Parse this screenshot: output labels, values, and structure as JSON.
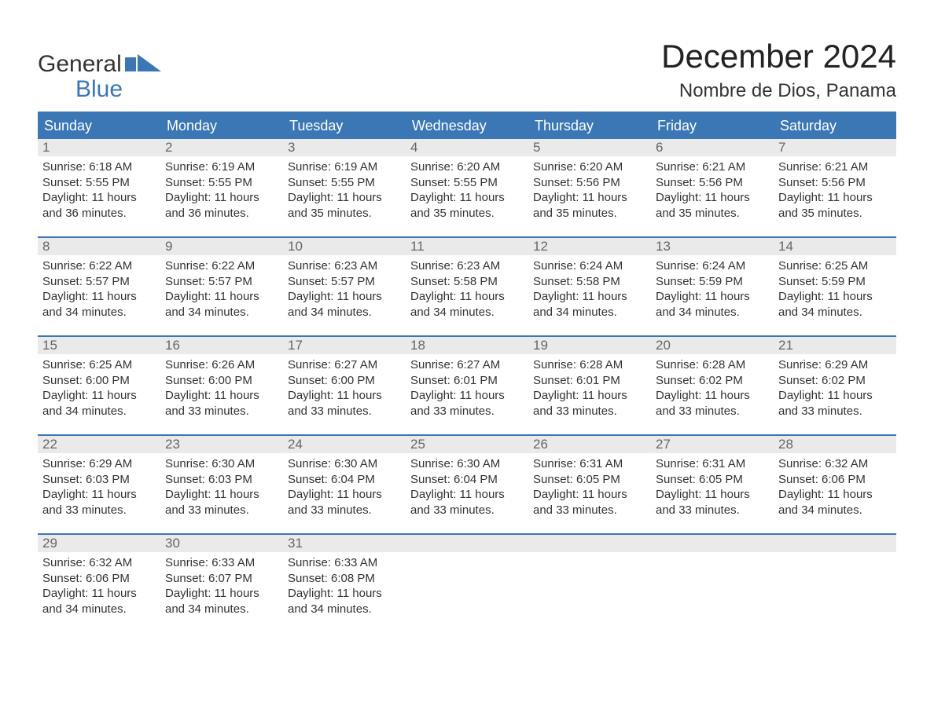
{
  "logo": {
    "line1": "General",
    "line2": "Blue"
  },
  "title": "December 2024",
  "subtitle": "Nombre de Dios, Panama",
  "colors": {
    "brand_blue": "#3b76b5",
    "header_gray": "#eaeaea",
    "text_dark": "#333333",
    "text_muted": "#666666",
    "bg": "#ffffff"
  },
  "daysOfWeek": [
    "Sunday",
    "Monday",
    "Tuesday",
    "Wednesday",
    "Thursday",
    "Friday",
    "Saturday"
  ],
  "weeks": [
    [
      {
        "n": "1",
        "sr": "Sunrise: 6:18 AM",
        "ss": "Sunset: 5:55 PM",
        "d1": "Daylight: 11 hours",
        "d2": "and 36 minutes."
      },
      {
        "n": "2",
        "sr": "Sunrise: 6:19 AM",
        "ss": "Sunset: 5:55 PM",
        "d1": "Daylight: 11 hours",
        "d2": "and 36 minutes."
      },
      {
        "n": "3",
        "sr": "Sunrise: 6:19 AM",
        "ss": "Sunset: 5:55 PM",
        "d1": "Daylight: 11 hours",
        "d2": "and 35 minutes."
      },
      {
        "n": "4",
        "sr": "Sunrise: 6:20 AM",
        "ss": "Sunset: 5:55 PM",
        "d1": "Daylight: 11 hours",
        "d2": "and 35 minutes."
      },
      {
        "n": "5",
        "sr": "Sunrise: 6:20 AM",
        "ss": "Sunset: 5:56 PM",
        "d1": "Daylight: 11 hours",
        "d2": "and 35 minutes."
      },
      {
        "n": "6",
        "sr": "Sunrise: 6:21 AM",
        "ss": "Sunset: 5:56 PM",
        "d1": "Daylight: 11 hours",
        "d2": "and 35 minutes."
      },
      {
        "n": "7",
        "sr": "Sunrise: 6:21 AM",
        "ss": "Sunset: 5:56 PM",
        "d1": "Daylight: 11 hours",
        "d2": "and 35 minutes."
      }
    ],
    [
      {
        "n": "8",
        "sr": "Sunrise: 6:22 AM",
        "ss": "Sunset: 5:57 PM",
        "d1": "Daylight: 11 hours",
        "d2": "and 34 minutes."
      },
      {
        "n": "9",
        "sr": "Sunrise: 6:22 AM",
        "ss": "Sunset: 5:57 PM",
        "d1": "Daylight: 11 hours",
        "d2": "and 34 minutes."
      },
      {
        "n": "10",
        "sr": "Sunrise: 6:23 AM",
        "ss": "Sunset: 5:57 PM",
        "d1": "Daylight: 11 hours",
        "d2": "and 34 minutes."
      },
      {
        "n": "11",
        "sr": "Sunrise: 6:23 AM",
        "ss": "Sunset: 5:58 PM",
        "d1": "Daylight: 11 hours",
        "d2": "and 34 minutes."
      },
      {
        "n": "12",
        "sr": "Sunrise: 6:24 AM",
        "ss": "Sunset: 5:58 PM",
        "d1": "Daylight: 11 hours",
        "d2": "and 34 minutes."
      },
      {
        "n": "13",
        "sr": "Sunrise: 6:24 AM",
        "ss": "Sunset: 5:59 PM",
        "d1": "Daylight: 11 hours",
        "d2": "and 34 minutes."
      },
      {
        "n": "14",
        "sr": "Sunrise: 6:25 AM",
        "ss": "Sunset: 5:59 PM",
        "d1": "Daylight: 11 hours",
        "d2": "and 34 minutes."
      }
    ],
    [
      {
        "n": "15",
        "sr": "Sunrise: 6:25 AM",
        "ss": "Sunset: 6:00 PM",
        "d1": "Daylight: 11 hours",
        "d2": "and 34 minutes."
      },
      {
        "n": "16",
        "sr": "Sunrise: 6:26 AM",
        "ss": "Sunset: 6:00 PM",
        "d1": "Daylight: 11 hours",
        "d2": "and 33 minutes."
      },
      {
        "n": "17",
        "sr": "Sunrise: 6:27 AM",
        "ss": "Sunset: 6:00 PM",
        "d1": "Daylight: 11 hours",
        "d2": "and 33 minutes."
      },
      {
        "n": "18",
        "sr": "Sunrise: 6:27 AM",
        "ss": "Sunset: 6:01 PM",
        "d1": "Daylight: 11 hours",
        "d2": "and 33 minutes."
      },
      {
        "n": "19",
        "sr": "Sunrise: 6:28 AM",
        "ss": "Sunset: 6:01 PM",
        "d1": "Daylight: 11 hours",
        "d2": "and 33 minutes."
      },
      {
        "n": "20",
        "sr": "Sunrise: 6:28 AM",
        "ss": "Sunset: 6:02 PM",
        "d1": "Daylight: 11 hours",
        "d2": "and 33 minutes."
      },
      {
        "n": "21",
        "sr": "Sunrise: 6:29 AM",
        "ss": "Sunset: 6:02 PM",
        "d1": "Daylight: 11 hours",
        "d2": "and 33 minutes."
      }
    ],
    [
      {
        "n": "22",
        "sr": "Sunrise: 6:29 AM",
        "ss": "Sunset: 6:03 PM",
        "d1": "Daylight: 11 hours",
        "d2": "and 33 minutes."
      },
      {
        "n": "23",
        "sr": "Sunrise: 6:30 AM",
        "ss": "Sunset: 6:03 PM",
        "d1": "Daylight: 11 hours",
        "d2": "and 33 minutes."
      },
      {
        "n": "24",
        "sr": "Sunrise: 6:30 AM",
        "ss": "Sunset: 6:04 PM",
        "d1": "Daylight: 11 hours",
        "d2": "and 33 minutes."
      },
      {
        "n": "25",
        "sr": "Sunrise: 6:30 AM",
        "ss": "Sunset: 6:04 PM",
        "d1": "Daylight: 11 hours",
        "d2": "and 33 minutes."
      },
      {
        "n": "26",
        "sr": "Sunrise: 6:31 AM",
        "ss": "Sunset: 6:05 PM",
        "d1": "Daylight: 11 hours",
        "d2": "and 33 minutes."
      },
      {
        "n": "27",
        "sr": "Sunrise: 6:31 AM",
        "ss": "Sunset: 6:05 PM",
        "d1": "Daylight: 11 hours",
        "d2": "and 33 minutes."
      },
      {
        "n": "28",
        "sr": "Sunrise: 6:32 AM",
        "ss": "Sunset: 6:06 PM",
        "d1": "Daylight: 11 hours",
        "d2": "and 34 minutes."
      }
    ],
    [
      {
        "n": "29",
        "sr": "Sunrise: 6:32 AM",
        "ss": "Sunset: 6:06 PM",
        "d1": "Daylight: 11 hours",
        "d2": "and 34 minutes."
      },
      {
        "n": "30",
        "sr": "Sunrise: 6:33 AM",
        "ss": "Sunset: 6:07 PM",
        "d1": "Daylight: 11 hours",
        "d2": "and 34 minutes."
      },
      {
        "n": "31",
        "sr": "Sunrise: 6:33 AM",
        "ss": "Sunset: 6:08 PM",
        "d1": "Daylight: 11 hours",
        "d2": "and 34 minutes."
      },
      {
        "n": "",
        "sr": "",
        "ss": "",
        "d1": "",
        "d2": ""
      },
      {
        "n": "",
        "sr": "",
        "ss": "",
        "d1": "",
        "d2": ""
      },
      {
        "n": "",
        "sr": "",
        "ss": "",
        "d1": "",
        "d2": ""
      },
      {
        "n": "",
        "sr": "",
        "ss": "",
        "d1": "",
        "d2": ""
      }
    ]
  ]
}
